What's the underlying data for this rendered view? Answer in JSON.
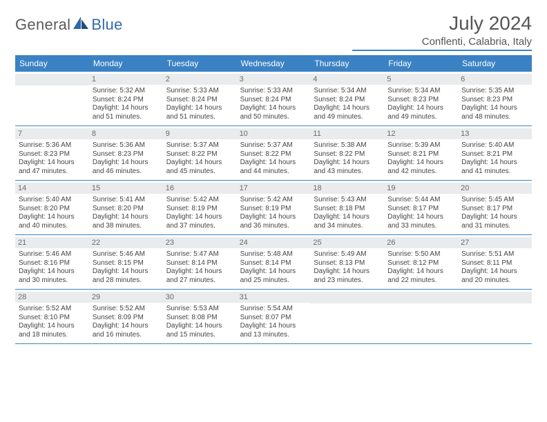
{
  "brand": {
    "part1": "General",
    "part2": "Blue"
  },
  "title": "July 2024",
  "location": "Conflenti, Calabria, Italy",
  "weekdays": [
    "Sunday",
    "Monday",
    "Tuesday",
    "Wednesday",
    "Thursday",
    "Friday",
    "Saturday"
  ],
  "colors": {
    "header_bg": "#3b82c4",
    "header_text": "#ffffff",
    "day_bar_bg": "#e9ebec",
    "text": "#444444",
    "rule": "#3b82c4",
    "logo_gray": "#5a5a5a",
    "logo_blue": "#2f6aa8"
  },
  "layout": {
    "cols": 7,
    "rows": 5,
    "start_offset": 1,
    "days_in_month": 31
  },
  "days": [
    {
      "n": 1,
      "sunrise": "5:32 AM",
      "sunset": "8:24 PM",
      "daylight": "14 hours and 51 minutes."
    },
    {
      "n": 2,
      "sunrise": "5:33 AM",
      "sunset": "8:24 PM",
      "daylight": "14 hours and 51 minutes."
    },
    {
      "n": 3,
      "sunrise": "5:33 AM",
      "sunset": "8:24 PM",
      "daylight": "14 hours and 50 minutes."
    },
    {
      "n": 4,
      "sunrise": "5:34 AM",
      "sunset": "8:24 PM",
      "daylight": "14 hours and 49 minutes."
    },
    {
      "n": 5,
      "sunrise": "5:34 AM",
      "sunset": "8:23 PM",
      "daylight": "14 hours and 49 minutes."
    },
    {
      "n": 6,
      "sunrise": "5:35 AM",
      "sunset": "8:23 PM",
      "daylight": "14 hours and 48 minutes."
    },
    {
      "n": 7,
      "sunrise": "5:36 AM",
      "sunset": "8:23 PM",
      "daylight": "14 hours and 47 minutes."
    },
    {
      "n": 8,
      "sunrise": "5:36 AM",
      "sunset": "8:23 PM",
      "daylight": "14 hours and 46 minutes."
    },
    {
      "n": 9,
      "sunrise": "5:37 AM",
      "sunset": "8:22 PM",
      "daylight": "14 hours and 45 minutes."
    },
    {
      "n": 10,
      "sunrise": "5:37 AM",
      "sunset": "8:22 PM",
      "daylight": "14 hours and 44 minutes."
    },
    {
      "n": 11,
      "sunrise": "5:38 AM",
      "sunset": "8:22 PM",
      "daylight": "14 hours and 43 minutes."
    },
    {
      "n": 12,
      "sunrise": "5:39 AM",
      "sunset": "8:21 PM",
      "daylight": "14 hours and 42 minutes."
    },
    {
      "n": 13,
      "sunrise": "5:40 AM",
      "sunset": "8:21 PM",
      "daylight": "14 hours and 41 minutes."
    },
    {
      "n": 14,
      "sunrise": "5:40 AM",
      "sunset": "8:20 PM",
      "daylight": "14 hours and 40 minutes."
    },
    {
      "n": 15,
      "sunrise": "5:41 AM",
      "sunset": "8:20 PM",
      "daylight": "14 hours and 38 minutes."
    },
    {
      "n": 16,
      "sunrise": "5:42 AM",
      "sunset": "8:19 PM",
      "daylight": "14 hours and 37 minutes."
    },
    {
      "n": 17,
      "sunrise": "5:42 AM",
      "sunset": "8:19 PM",
      "daylight": "14 hours and 36 minutes."
    },
    {
      "n": 18,
      "sunrise": "5:43 AM",
      "sunset": "8:18 PM",
      "daylight": "14 hours and 34 minutes."
    },
    {
      "n": 19,
      "sunrise": "5:44 AM",
      "sunset": "8:17 PM",
      "daylight": "14 hours and 33 minutes."
    },
    {
      "n": 20,
      "sunrise": "5:45 AM",
      "sunset": "8:17 PM",
      "daylight": "14 hours and 31 minutes."
    },
    {
      "n": 21,
      "sunrise": "5:46 AM",
      "sunset": "8:16 PM",
      "daylight": "14 hours and 30 minutes."
    },
    {
      "n": 22,
      "sunrise": "5:46 AM",
      "sunset": "8:15 PM",
      "daylight": "14 hours and 28 minutes."
    },
    {
      "n": 23,
      "sunrise": "5:47 AM",
      "sunset": "8:14 PM",
      "daylight": "14 hours and 27 minutes."
    },
    {
      "n": 24,
      "sunrise": "5:48 AM",
      "sunset": "8:14 PM",
      "daylight": "14 hours and 25 minutes."
    },
    {
      "n": 25,
      "sunrise": "5:49 AM",
      "sunset": "8:13 PM",
      "daylight": "14 hours and 23 minutes."
    },
    {
      "n": 26,
      "sunrise": "5:50 AM",
      "sunset": "8:12 PM",
      "daylight": "14 hours and 22 minutes."
    },
    {
      "n": 27,
      "sunrise": "5:51 AM",
      "sunset": "8:11 PM",
      "daylight": "14 hours and 20 minutes."
    },
    {
      "n": 28,
      "sunrise": "5:52 AM",
      "sunset": "8:10 PM",
      "daylight": "14 hours and 18 minutes."
    },
    {
      "n": 29,
      "sunrise": "5:52 AM",
      "sunset": "8:09 PM",
      "daylight": "14 hours and 16 minutes."
    },
    {
      "n": 30,
      "sunrise": "5:53 AM",
      "sunset": "8:08 PM",
      "daylight": "14 hours and 15 minutes."
    },
    {
      "n": 31,
      "sunrise": "5:54 AM",
      "sunset": "8:07 PM",
      "daylight": "14 hours and 13 minutes."
    }
  ],
  "labels": {
    "sunrise_prefix": "Sunrise: ",
    "sunset_prefix": "Sunset: ",
    "daylight_prefix": "Daylight: "
  }
}
